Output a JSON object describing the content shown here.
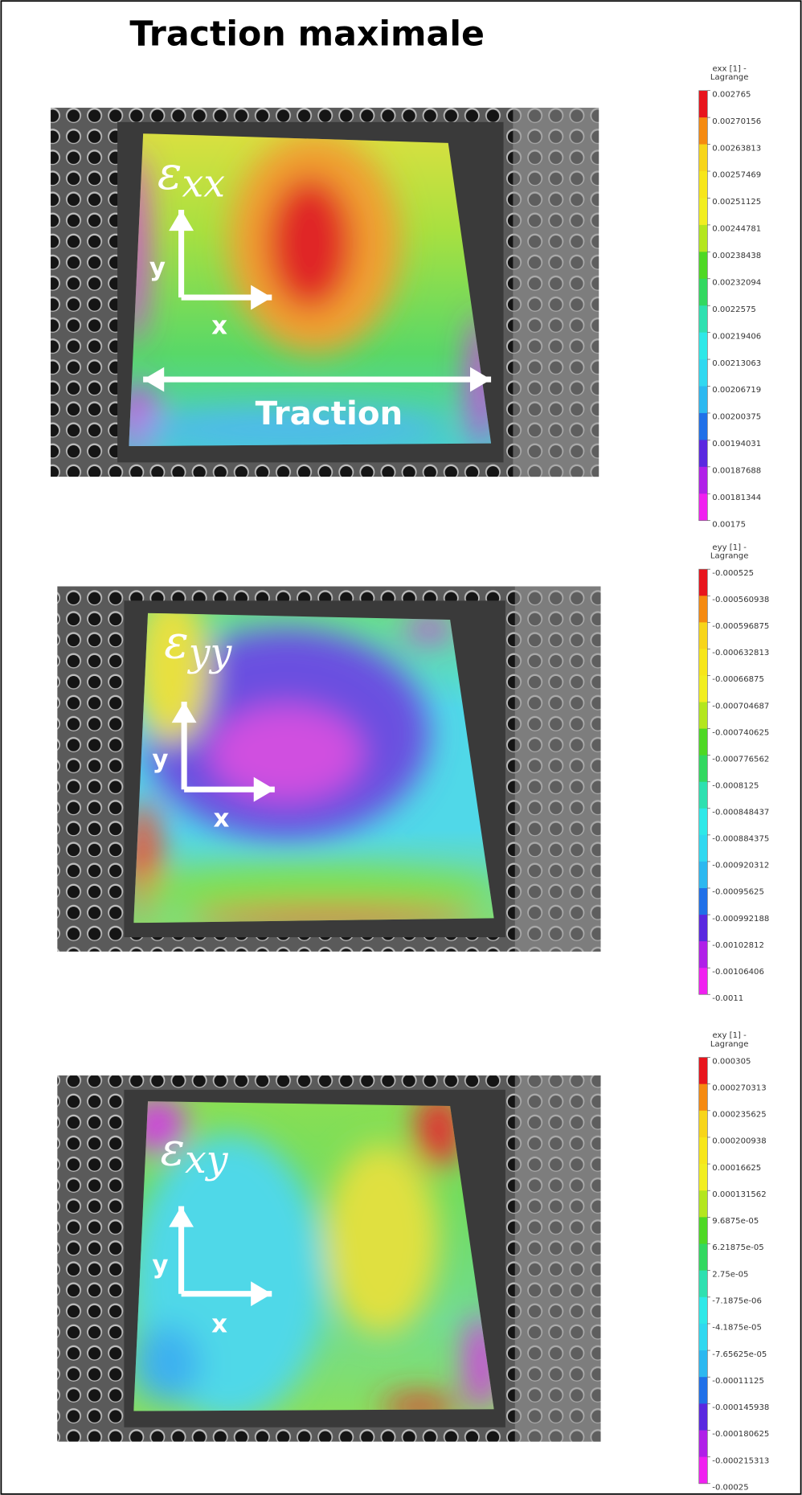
{
  "title": "Traction maximale",
  "panels": [
    {
      "symbol": "ε",
      "subscript": "xx",
      "axis_y": "y",
      "axis_x": "x",
      "annotation": "Traction",
      "colorbar": {
        "title": [
          "exx [1] -",
          "Lagrange"
        ],
        "ticks": [
          "0.002765",
          "0.00270156",
          "0.00263813",
          "0.00257469",
          "0.00251125",
          "0.00244781",
          "0.00238438",
          "0.00232094",
          "0.0022575",
          "0.00219406",
          "0.00213063",
          "0.00206719",
          "0.00200375",
          "0.00194031",
          "0.00187688",
          "0.00181344",
          "0.00175"
        ]
      }
    },
    {
      "symbol": "ε",
      "subscript": "yy",
      "axis_y": "y",
      "axis_x": "x",
      "colorbar": {
        "title": [
          "eyy [1] -",
          "Lagrange"
        ],
        "ticks": [
          "-0.000525",
          "-0.000560938",
          "-0.000596875",
          "-0.000632813",
          "-0.00066875",
          "-0.000704687",
          "-0.000740625",
          "-0.000776562",
          "-0.0008125",
          "-0.000848437",
          "-0.000884375",
          "-0.000920312",
          "-0.00095625",
          "-0.000992188",
          "-0.00102812",
          "-0.00106406",
          "-0.0011"
        ]
      }
    },
    {
      "symbol": "ε",
      "subscript": "xy",
      "axis_y": "y",
      "axis_x": "x",
      "colorbar": {
        "title": [
          "exy [1] -",
          "Lagrange"
        ],
        "ticks": [
          "0.000305",
          "0.000270313",
          "0.000235625",
          "0.000200938",
          "0.00016625",
          "0.000131562",
          "9.6875e-05",
          "6.21875e-05",
          "2.75e-05",
          "-7.1875e-06",
          "-4.1875e-05",
          "-7.65625e-05",
          "-0.00011125",
          "-0.000145938",
          "-0.000180625",
          "-0.000215313",
          "-0.00025"
        ]
      }
    }
  ]
}
